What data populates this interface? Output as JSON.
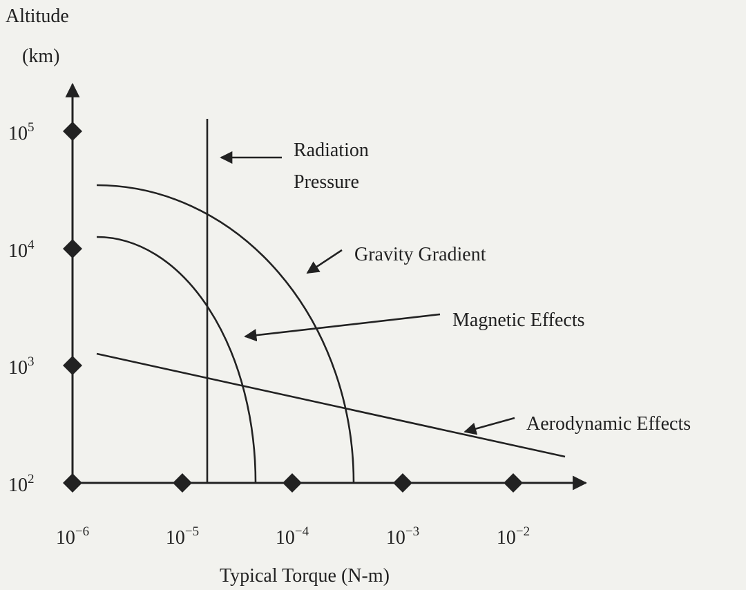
{
  "y_axis_title": [
    "Altitude",
    "(km)"
  ],
  "x_axis_title": "Typical Torque (N-m)",
  "y_ticks": [
    {
      "base": "10",
      "exponent": "5"
    },
    {
      "base": "10",
      "exponent": "4"
    },
    {
      "base": "10",
      "exponent": "3"
    },
    {
      "base": "10",
      "exponent": "2"
    }
  ],
  "x_ticks": [
    {
      "base": "10",
      "exponent": "−6"
    },
    {
      "base": "10",
      "exponent": "−5"
    },
    {
      "base": "10",
      "exponent": "−4"
    },
    {
      "base": "10",
      "exponent": "−3"
    },
    {
      "base": "10",
      "exponent": "−2"
    }
  ],
  "labels": {
    "radiation": [
      "Radiation",
      "Pressure"
    ],
    "gravity": "Gravity Gradient",
    "magnetic": "Magnetic Effects",
    "aerodynamic": "Aerodynamic Effects"
  }
}
